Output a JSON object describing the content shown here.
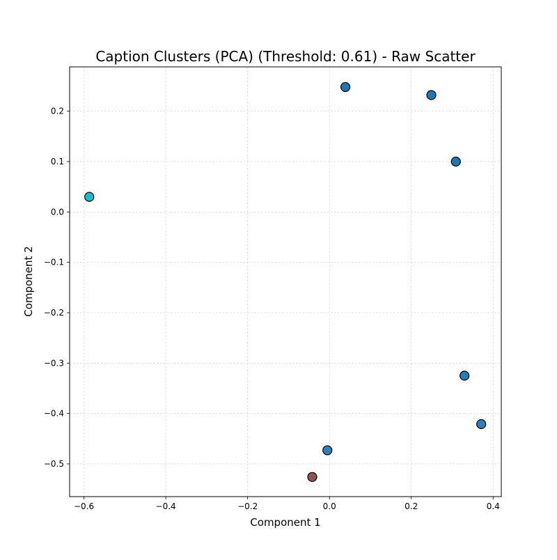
{
  "chart_data": {
    "type": "scatter",
    "title": "Caption Clusters (PCA) (Threshold: 0.61) - Raw Scatter",
    "xlabel": "Component 1",
    "ylabel": "Component 2",
    "xlim": [
      -0.635,
      0.42
    ],
    "ylim": [
      -0.565,
      0.288
    ],
    "x_ticks": [
      -0.6,
      -0.4,
      -0.2,
      0.0,
      0.2,
      0.4
    ],
    "x_tick_labels": [
      "−0.6",
      "−0.4",
      "−0.2",
      "0.0",
      "0.2",
      "0.4"
    ],
    "y_ticks": [
      0.2,
      0.1,
      0.0,
      -0.1,
      -0.2,
      -0.3,
      -0.4,
      -0.5
    ],
    "y_tick_labels": [
      "0.2",
      "0.1",
      "0.0",
      "−0.1",
      "−0.2",
      "−0.3",
      "−0.4",
      "−0.5"
    ],
    "grid": true,
    "points": [
      {
        "x": -0.587,
        "y": 0.03,
        "color": "#17becf"
      },
      {
        "x": 0.039,
        "y": 0.248,
        "color": "#1f77b4"
      },
      {
        "x": 0.249,
        "y": 0.232,
        "color": "#1f77b4"
      },
      {
        "x": 0.309,
        "y": 0.1,
        "color": "#1f77b4"
      },
      {
        "x": 0.33,
        "y": -0.325,
        "color": "#2a7cb8"
      },
      {
        "x": 0.371,
        "y": -0.421,
        "color": "#2f7fba"
      },
      {
        "x": -0.005,
        "y": -0.473,
        "color": "#2e80bb"
      },
      {
        "x": -0.042,
        "y": -0.526,
        "color": "#8c564b"
      }
    ]
  }
}
